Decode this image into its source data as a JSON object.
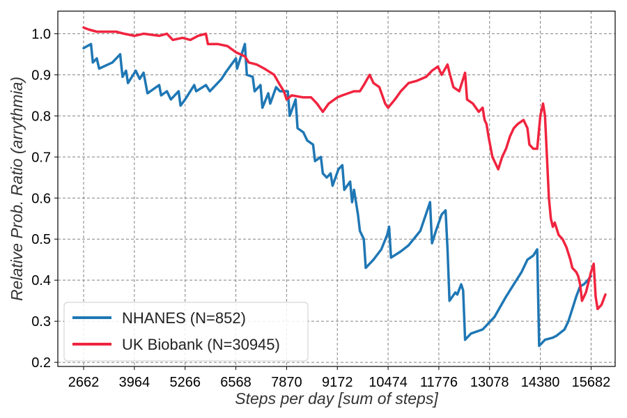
{
  "chart_data": {
    "type": "line",
    "xlabel": "Steps per day [sum of steps]",
    "ylabel": "Relative Prob. Ratio (arrythmia)",
    "xlim": [
      2000,
      16300
    ],
    "ylim": [
      0.19,
      1.055
    ],
    "x_ticks": [
      2662,
      3964,
      5266,
      6568,
      7870,
      9172,
      10474,
      11776,
      13078,
      14380,
      15682
    ],
    "y_ticks": [
      0.2,
      0.3,
      0.4,
      0.5,
      0.6,
      0.7,
      0.8,
      0.9,
      1.0
    ],
    "grid": true,
    "legend_position": "lower-left",
    "series": [
      {
        "name": "NHANES (N=852)",
        "color": "#1f77b4",
        "points": [
          [
            2662,
            0.965
          ],
          [
            2850,
            0.975
          ],
          [
            2900,
            0.93
          ],
          [
            3000,
            0.94
          ],
          [
            3060,
            0.915
          ],
          [
            3400,
            0.93
          ],
          [
            3600,
            0.95
          ],
          [
            3660,
            0.895
          ],
          [
            3750,
            0.91
          ],
          [
            3800,
            0.88
          ],
          [
            4000,
            0.91
          ],
          [
            4100,
            0.89
          ],
          [
            4200,
            0.905
          ],
          [
            4300,
            0.855
          ],
          [
            4600,
            0.875
          ],
          [
            4650,
            0.85
          ],
          [
            4800,
            0.86
          ],
          [
            4900,
            0.84
          ],
          [
            5100,
            0.86
          ],
          [
            5150,
            0.825
          ],
          [
            5266,
            0.84
          ],
          [
            5500,
            0.875
          ],
          [
            5550,
            0.86
          ],
          [
            5800,
            0.875
          ],
          [
            5900,
            0.86
          ],
          [
            6200,
            0.89
          ],
          [
            6300,
            0.905
          ],
          [
            6568,
            0.94
          ],
          [
            6600,
            0.915
          ],
          [
            6800,
            0.975
          ],
          [
            6850,
            0.9
          ],
          [
            7000,
            0.895
          ],
          [
            7050,
            0.86
          ],
          [
            7200,
            0.875
          ],
          [
            7250,
            0.82
          ],
          [
            7400,
            0.855
          ],
          [
            7450,
            0.83
          ],
          [
            7600,
            0.87
          ],
          [
            7700,
            0.86
          ],
          [
            7900,
            0.86
          ],
          [
            7950,
            0.8
          ],
          [
            8100,
            0.84
          ],
          [
            8150,
            0.77
          ],
          [
            8300,
            0.76
          ],
          [
            8400,
            0.74
          ],
          [
            8550,
            0.73
          ],
          [
            8600,
            0.69
          ],
          [
            8750,
            0.7
          ],
          [
            8800,
            0.66
          ],
          [
            8900,
            0.65
          ],
          [
            9000,
            0.66
          ],
          [
            9050,
            0.63
          ],
          [
            9200,
            0.67
          ],
          [
            9300,
            0.68
          ],
          [
            9350,
            0.62
          ],
          [
            9500,
            0.64
          ],
          [
            9550,
            0.59
          ],
          [
            9600,
            0.62
          ],
          [
            9700,
            0.56
          ],
          [
            9750,
            0.52
          ],
          [
            9850,
            0.5
          ],
          [
            9900,
            0.43
          ],
          [
            10100,
            0.45
          ],
          [
            10300,
            0.475
          ],
          [
            10450,
            0.51
          ],
          [
            10500,
            0.53
          ],
          [
            10550,
            0.455
          ],
          [
            10800,
            0.47
          ],
          [
            11000,
            0.485
          ],
          [
            11300,
            0.52
          ],
          [
            11550,
            0.59
          ],
          [
            11600,
            0.49
          ],
          [
            11700,
            0.52
          ],
          [
            11850,
            0.56
          ],
          [
            11950,
            0.57
          ],
          [
            12000,
            0.475
          ],
          [
            12050,
            0.35
          ],
          [
            12200,
            0.37
          ],
          [
            12250,
            0.365
          ],
          [
            12350,
            0.39
          ],
          [
            12400,
            0.375
          ],
          [
            12450,
            0.255
          ],
          [
            12600,
            0.27
          ],
          [
            12900,
            0.28
          ],
          [
            13200,
            0.31
          ],
          [
            13500,
            0.36
          ],
          [
            13700,
            0.39
          ],
          [
            13900,
            0.42
          ],
          [
            14050,
            0.45
          ],
          [
            14200,
            0.46
          ],
          [
            14300,
            0.475
          ],
          [
            14350,
            0.24
          ],
          [
            14500,
            0.255
          ],
          [
            14700,
            0.26
          ],
          [
            14800,
            0.265
          ],
          [
            15000,
            0.28
          ],
          [
            15100,
            0.3
          ],
          [
            15200,
            0.33
          ],
          [
            15300,
            0.36
          ],
          [
            15400,
            0.385
          ],
          [
            15500,
            0.39
          ],
          [
            15600,
            0.4
          ],
          [
            15682,
            0.41
          ]
        ]
      },
      {
        "name": "UK Biobank (N=30945)",
        "color": "#f0243f",
        "points": [
          [
            2662,
            1.015
          ],
          [
            2800,
            1.01
          ],
          [
            3000,
            1.005
          ],
          [
            3500,
            1.005
          ],
          [
            3700,
            1.0
          ],
          [
            3964,
            0.995
          ],
          [
            4200,
            1.0
          ],
          [
            4600,
            0.995
          ],
          [
            4800,
            1.0
          ],
          [
            4950,
            0.985
          ],
          [
            5200,
            0.99
          ],
          [
            5400,
            0.985
          ],
          [
            5600,
            0.995
          ],
          [
            5800,
            1.0
          ],
          [
            5850,
            0.975
          ],
          [
            6100,
            0.975
          ],
          [
            6350,
            0.97
          ],
          [
            6568,
            0.955
          ],
          [
            6800,
            0.945
          ],
          [
            6900,
            0.93
          ],
          [
            7100,
            0.925
          ],
          [
            7300,
            0.915
          ],
          [
            7550,
            0.9
          ],
          [
            7700,
            0.875
          ],
          [
            7800,
            0.86
          ],
          [
            7870,
            0.84
          ],
          [
            8000,
            0.85
          ],
          [
            8300,
            0.845
          ],
          [
            8500,
            0.845
          ],
          [
            8650,
            0.83
          ],
          [
            8800,
            0.81
          ],
          [
            8950,
            0.83
          ],
          [
            9172,
            0.845
          ],
          [
            9300,
            0.85
          ],
          [
            9600,
            0.86
          ],
          [
            9750,
            0.86
          ],
          [
            9850,
            0.875
          ],
          [
            10000,
            0.9
          ],
          [
            10100,
            0.88
          ],
          [
            10250,
            0.87
          ],
          [
            10400,
            0.83
          ],
          [
            10474,
            0.82
          ],
          [
            10650,
            0.84
          ],
          [
            10800,
            0.86
          ],
          [
            11000,
            0.88
          ],
          [
            11200,
            0.885
          ],
          [
            11450,
            0.895
          ],
          [
            11600,
            0.91
          ],
          [
            11750,
            0.92
          ],
          [
            11850,
            0.9
          ],
          [
            12000,
            0.925
          ],
          [
            12050,
            0.905
          ],
          [
            12150,
            0.87
          ],
          [
            12300,
            0.86
          ],
          [
            12450,
            0.905
          ],
          [
            12500,
            0.84
          ],
          [
            12650,
            0.83
          ],
          [
            12800,
            0.81
          ],
          [
            12900,
            0.82
          ],
          [
            12950,
            0.79
          ],
          [
            13000,
            0.78
          ],
          [
            13050,
            0.75
          ],
          [
            13150,
            0.7
          ],
          [
            13300,
            0.67
          ],
          [
            13400,
            0.7
          ],
          [
            13500,
            0.72
          ],
          [
            13600,
            0.75
          ],
          [
            13700,
            0.77
          ],
          [
            13800,
            0.78
          ],
          [
            13950,
            0.79
          ],
          [
            14050,
            0.77
          ],
          [
            14100,
            0.73
          ],
          [
            14200,
            0.72
          ],
          [
            14300,
            0.72
          ],
          [
            14380,
            0.8
          ],
          [
            14450,
            0.83
          ],
          [
            14500,
            0.8
          ],
          [
            14550,
            0.7
          ],
          [
            14600,
            0.6
          ],
          [
            14650,
            0.55
          ],
          [
            14700,
            0.53
          ],
          [
            14750,
            0.54
          ],
          [
            14850,
            0.51
          ],
          [
            14950,
            0.5
          ],
          [
            15050,
            0.48
          ],
          [
            15150,
            0.45
          ],
          [
            15200,
            0.43
          ],
          [
            15300,
            0.42
          ],
          [
            15350,
            0.41
          ],
          [
            15400,
            0.39
          ],
          [
            15450,
            0.35
          ],
          [
            15550,
            0.37
          ],
          [
            15682,
            0.42
          ],
          [
            15750,
            0.44
          ],
          [
            15800,
            0.36
          ],
          [
            15850,
            0.33
          ],
          [
            15950,
            0.34
          ],
          [
            16050,
            0.365
          ]
        ]
      }
    ]
  }
}
